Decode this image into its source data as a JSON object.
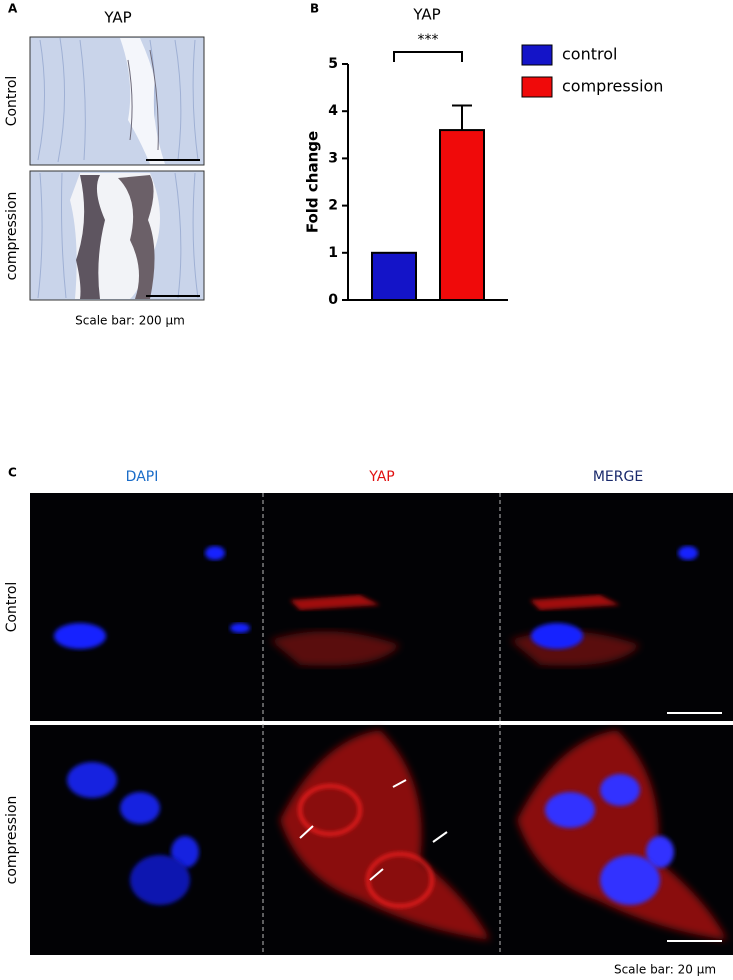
{
  "panel_a": {
    "label": "A",
    "title": "YAP",
    "rows": [
      "Control",
      "compression"
    ],
    "scale_bar": "Scale bar: 200 µm"
  },
  "chart_data": {
    "type": "bar",
    "panel_label": "B",
    "title": "YAP",
    "y_label": "Fold change",
    "annotation": "***",
    "categories": [
      null
    ],
    "series": [
      {
        "name": "control",
        "color": "#1414c8",
        "values": [
          1
        ]
      },
      {
        "name": "compression",
        "color": "#f00a0a",
        "values": [
          3.6
        ],
        "errors": [
          0.52
        ]
      }
    ],
    "ylim": [
      0,
      5
    ],
    "yticks": [
      0,
      1,
      2,
      3,
      4,
      5
    ]
  },
  "panel_c": {
    "label": "C",
    "columns": [
      "DAPI",
      "YAP",
      "MERGE"
    ],
    "rows": [
      "Control",
      "compression"
    ],
    "scale_bar": "Scale bar: 20 µm"
  }
}
